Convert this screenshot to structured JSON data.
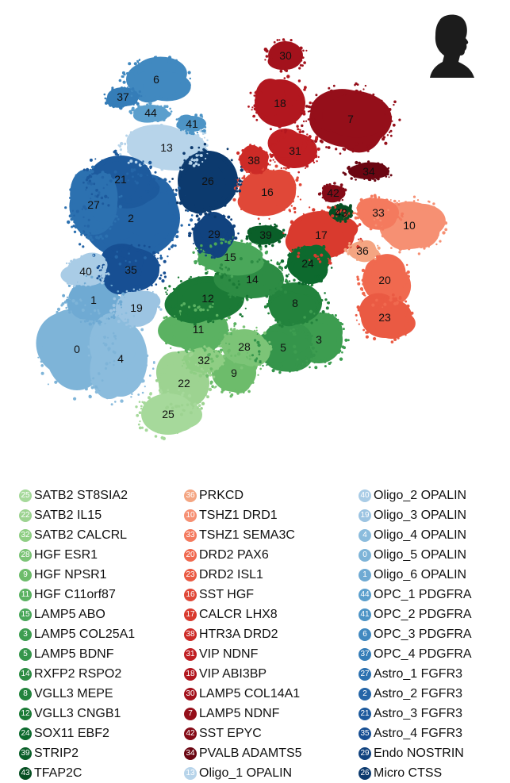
{
  "chart_data": {
    "type": "scatter",
    "title": "",
    "xlabel": "",
    "ylabel": "",
    "grid": false,
    "legend_placement": "bottom",
    "clusters": [
      {
        "id": "25",
        "name": "SATB2 ST8SIA2",
        "color": "#a6d99b"
      },
      {
        "id": "22",
        "name": "SATB2 IL15",
        "color": "#9dd391"
      },
      {
        "id": "32",
        "name": "SATB2 CALCRL",
        "color": "#8fce84"
      },
      {
        "id": "28",
        "name": "HGF ESR1",
        "color": "#7cc477"
      },
      {
        "id": "9",
        "name": "HGF NPSR1",
        "color": "#6dbc6b"
      },
      {
        "id": "11",
        "name": "HGF C11orf87",
        "color": "#5bb262"
      },
      {
        "id": "15",
        "name": "LAMP5 ABO",
        "color": "#4aa75a"
      },
      {
        "id": "3",
        "name": "LAMP5 COL25A1",
        "color": "#3d9d50"
      },
      {
        "id": "5",
        "name": "LAMP5 BDNF",
        "color": "#35954b"
      },
      {
        "id": "14",
        "name": "RXFP2 RSPO2",
        "color": "#2d8c44"
      },
      {
        "id": "8",
        "name": "VGLL3 MEPE",
        "color": "#23833d"
      },
      {
        "id": "12",
        "name": "VGLL3 CNGB1",
        "color": "#1b7a36"
      },
      {
        "id": "24",
        "name": "SOX11 EBF2",
        "color": "#0d6a2e"
      },
      {
        "id": "39",
        "name": "STRIP2",
        "color": "#0a5f29"
      },
      {
        "id": "43",
        "name": "TFAP2C",
        "color": "#064f22"
      },
      {
        "id": "36",
        "name": "PRKCD",
        "color": "#f4a582"
      },
      {
        "id": "10",
        "name": "TSHZ1 DRD1",
        "color": "#f69073"
      },
      {
        "id": "33",
        "name": "TSHZ1 SEMA3C",
        "color": "#f47a5e"
      },
      {
        "id": "20",
        "name": "DRD2 PAX6",
        "color": "#f0694f"
      },
      {
        "id": "23",
        "name": "DRD2 ISL1",
        "color": "#ea5a43"
      },
      {
        "id": "16",
        "name": "SST HGF",
        "color": "#e04838"
      },
      {
        "id": "17",
        "name": "CALCR LHX8",
        "color": "#d93a2e"
      },
      {
        "id": "38",
        "name": "HTR3A DRD2",
        "color": "#cd2b27"
      },
      {
        "id": "31",
        "name": "VIP NDNF",
        "color": "#c01f23"
      },
      {
        "id": "18",
        "name": "VIP ABI3BP",
        "color": "#b2171f"
      },
      {
        "id": "30",
        "name": "LAMP5 COL14A1",
        "color": "#a3121c"
      },
      {
        "id": "7",
        "name": "LAMP5 NDNF",
        "color": "#950f1a"
      },
      {
        "id": "42",
        "name": "SST EPYC",
        "color": "#850b17"
      },
      {
        "id": "34",
        "name": "PVALB ADAMTS5",
        "color": "#6b0612"
      },
      {
        "id": "13",
        "name": "Oligo_1 OPALIN",
        "color": "#b7d4ea"
      },
      {
        "id": "40",
        "name": "Oligo_2 OPALIN",
        "color": "#a9cce6"
      },
      {
        "id": "19",
        "name": "Oligo_3 OPALIN",
        "color": "#9cc4e2"
      },
      {
        "id": "4",
        "name": "Oligo_4 OPALIN",
        "color": "#8bbcdd"
      },
      {
        "id": "0",
        "name": "Oligo_5 OPALIN",
        "color": "#7eb4d8"
      },
      {
        "id": "1",
        "name": "Oligo_6 OPALIN",
        "color": "#6faad3"
      },
      {
        "id": "44",
        "name": "OPC_1 PDGFRA",
        "color": "#5b9fcd"
      },
      {
        "id": "41",
        "name": "OPC_2 PDGFRA",
        "color": "#4d94c6"
      },
      {
        "id": "6",
        "name": "OPC_3 PDGFRA",
        "color": "#4189c0"
      },
      {
        "id": "37",
        "name": "OPC_4 PDGFRA",
        "color": "#357db8"
      },
      {
        "id": "27",
        "name": "Astro_1 FGFR3",
        "color": "#2c71b0"
      },
      {
        "id": "2",
        "name": "Astro_2 FGFR3",
        "color": "#2465a7"
      },
      {
        "id": "21",
        "name": "Astro_3 FGFR3",
        "color": "#1d5a9d"
      },
      {
        "id": "35",
        "name": "Astro_4 FGFR3",
        "color": "#174f93"
      },
      {
        "id": "29",
        "name": "Endo NOSTRIN",
        "color": "#11437f"
      },
      {
        "id": "26",
        "name": "Micro CTSS",
        "color": "#0c3a6e"
      }
    ]
  }
}
